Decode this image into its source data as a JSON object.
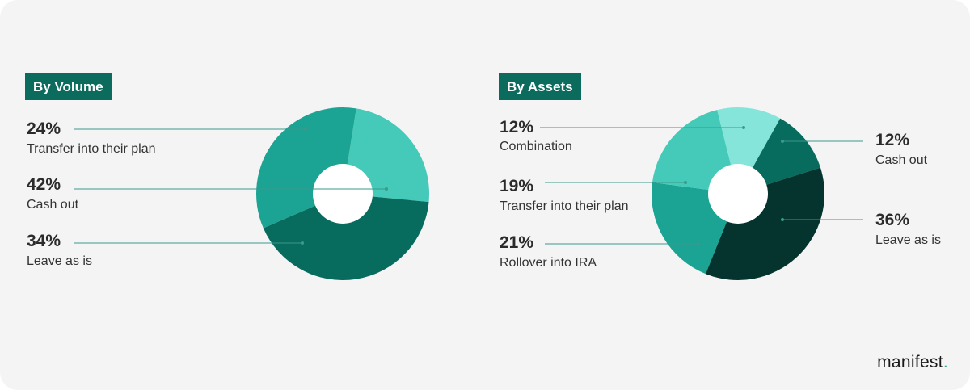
{
  "brand": {
    "name": "manifest",
    "dot": ".",
    "dot_color": "#2aa88f"
  },
  "colors": {
    "badge": "#0b6b5c",
    "leader": "#3a9a8c",
    "hole": "#ffffff",
    "background": "#f4f4f4"
  },
  "chart_data": [
    {
      "type": "pie",
      "donut": true,
      "title": "By Volume",
      "labels": [
        "Transfer into their plan",
        "Cash out",
        "Leave as is"
      ],
      "values": [
        24,
        42,
        34
      ],
      "display": [
        "24%",
        "42%",
        "34%"
      ],
      "colors": [
        "#45c9b8",
        "#076b5d",
        "#1ba393"
      ]
    },
    {
      "type": "pie",
      "donut": true,
      "title": "By Assets",
      "labels": [
        "Combination",
        "Cash out",
        "Leave as is",
        "Rollover into IRA",
        "Transfer into their plan"
      ],
      "values": [
        12,
        12,
        36,
        21,
        19
      ],
      "display": [
        "12%",
        "12%",
        "36%",
        "21%",
        "19%"
      ],
      "colors": [
        "#86e5da",
        "#076b5d",
        "#05332d",
        "#1ba393",
        "#45c9b8"
      ]
    }
  ]
}
